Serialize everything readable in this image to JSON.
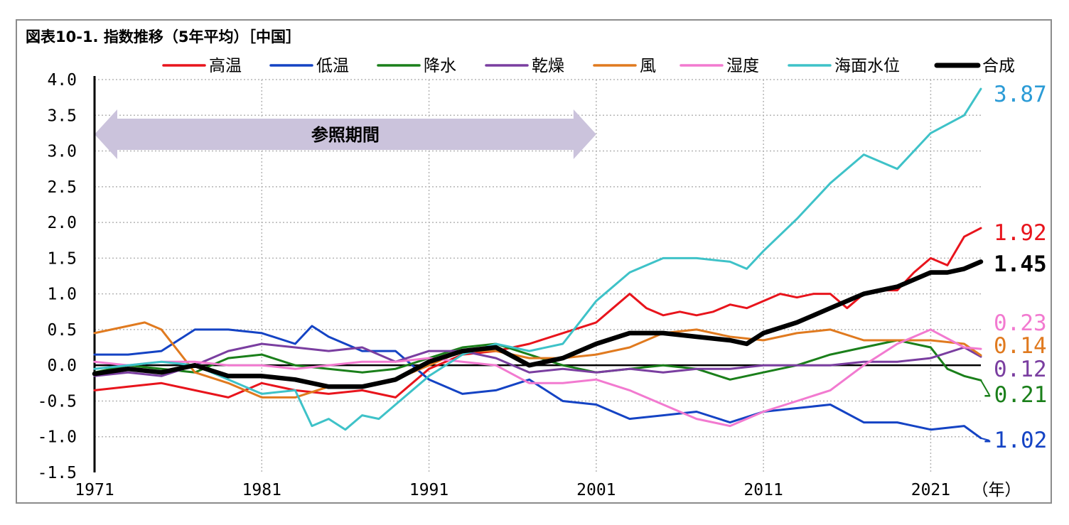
{
  "title": "図表10-1. 指数推移（5年平均）［中国］",
  "colors": {
    "高温": "#e8141c",
    "低温": "#1443c4",
    "降水": "#1a7f1a",
    "乾燥": "#7a3ea0",
    "風": "#e07a1f",
    "湿度": "#f27ad0",
    "海面水位": "#3ec2c8",
    "合成": "#000000"
  },
  "chart_data": {
    "type": "line",
    "title": "図表10-1. 指数推移（5年平均）［中国］",
    "xlabel": "（年）",
    "ylabel": "",
    "xlim": [
      1971,
      2024
    ],
    "ylim": [
      -1.5,
      4.0
    ],
    "x_ticks": [
      "1971",
      "1981",
      "1991",
      "2001",
      "2011",
      "2021"
    ],
    "y_ticks": [
      "4.0",
      "3.5",
      "3.0",
      "2.5",
      "2.0",
      "1.5",
      "1.0",
      "0.5",
      "0.0",
      "-0.5",
      "-1.0",
      "-1.5"
    ],
    "grid": "dotted",
    "legend_position": "top",
    "reference_period": {
      "label": "参照期間",
      "start": 1971,
      "end": 2001
    },
    "series": [
      {
        "name": "高温",
        "end_label": "1.92",
        "x": [
          1971,
          1973,
          1975,
          1977,
          1979,
          1981,
          1983,
          1985,
          1987,
          1989,
          1991,
          1993,
          1995,
          1997,
          1999,
          2001,
          2002,
          2003,
          2004,
          2005,
          2006,
          2007,
          2008,
          2009,
          2010,
          2011,
          2012,
          2013,
          2014,
          2015,
          2016,
          2017,
          2018,
          2019,
          2020,
          2021,
          2022,
          2023,
          2024
        ],
        "y": [
          -0.35,
          -0.3,
          -0.25,
          -0.35,
          -0.45,
          -0.25,
          -0.35,
          -0.4,
          -0.35,
          -0.45,
          -0.05,
          0.15,
          0.2,
          0.3,
          0.45,
          0.6,
          0.8,
          1.0,
          0.8,
          0.7,
          0.75,
          0.7,
          0.75,
          0.85,
          0.8,
          0.9,
          1.0,
          0.95,
          1.0,
          1.0,
          0.8,
          1.0,
          1.05,
          1.05,
          1.3,
          1.5,
          1.4,
          1.8,
          1.92
        ]
      },
      {
        "name": "低温",
        "end_label": "-1.02",
        "x": [
          1971,
          1973,
          1975,
          1977,
          1979,
          1981,
          1983,
          1984,
          1985,
          1987,
          1989,
          1991,
          1993,
          1995,
          1997,
          1999,
          2001,
          2003,
          2005,
          2007,
          2009,
          2011,
          2013,
          2015,
          2017,
          2019,
          2021,
          2023,
          2024
        ],
        "y": [
          0.15,
          0.15,
          0.2,
          0.5,
          0.5,
          0.45,
          0.3,
          0.55,
          0.4,
          0.2,
          0.2,
          -0.2,
          -0.4,
          -0.35,
          -0.2,
          -0.5,
          -0.55,
          -0.75,
          -0.7,
          -0.65,
          -0.8,
          -0.65,
          -0.6,
          -0.55,
          -0.8,
          -0.8,
          -0.9,
          -0.85,
          -1.02
        ]
      },
      {
        "name": "降水",
        "end_label": "-0.21",
        "x": [
          1971,
          1973,
          1975,
          1977,
          1979,
          1981,
          1983,
          1985,
          1987,
          1989,
          1991,
          1993,
          1995,
          1997,
          1999,
          2001,
          2003,
          2005,
          2007,
          2009,
          2011,
          2013,
          2015,
          2017,
          2019,
          2021,
          2022,
          2023,
          2024
        ],
        "y": [
          -0.1,
          0.0,
          -0.05,
          -0.1,
          0.1,
          0.15,
          0.0,
          -0.05,
          -0.1,
          -0.05,
          0.1,
          0.25,
          0.3,
          0.15,
          0.0,
          -0.1,
          -0.05,
          0.0,
          -0.05,
          -0.2,
          -0.1,
          0.0,
          0.15,
          0.25,
          0.35,
          0.25,
          -0.05,
          -0.15,
          -0.21
        ]
      },
      {
        "name": "乾燥",
        "end_label": "0.12",
        "x": [
          1971,
          1973,
          1975,
          1977,
          1979,
          1981,
          1983,
          1985,
          1987,
          1989,
          1991,
          1993,
          1995,
          1997,
          1999,
          2001,
          2003,
          2005,
          2007,
          2009,
          2011,
          2013,
          2015,
          2017,
          2019,
          2021,
          2023,
          2024
        ],
        "y": [
          -0.15,
          -0.1,
          -0.15,
          0.0,
          0.2,
          0.3,
          0.25,
          0.2,
          0.25,
          0.05,
          0.2,
          0.2,
          0.1,
          -0.1,
          -0.05,
          -0.1,
          -0.05,
          -0.1,
          -0.05,
          -0.05,
          0.0,
          0.0,
          0.0,
          0.05,
          0.05,
          0.1,
          0.25,
          0.12
        ]
      },
      {
        "name": "風",
        "end_label": "0.14",
        "x": [
          1971,
          1973,
          1974,
          1975,
          1977,
          1979,
          1981,
          1983,
          1985,
          1987,
          1989,
          1991,
          1993,
          1995,
          1997,
          1999,
          2001,
          2003,
          2005,
          2007,
          2009,
          2011,
          2013,
          2015,
          2017,
          2019,
          2021,
          2023,
          2024
        ],
        "y": [
          0.45,
          0.55,
          0.6,
          0.5,
          -0.1,
          -0.25,
          -0.45,
          -0.45,
          -0.3,
          -0.3,
          -0.2,
          0.0,
          0.2,
          0.2,
          0.1,
          0.1,
          0.15,
          0.25,
          0.45,
          0.5,
          0.4,
          0.35,
          0.45,
          0.5,
          0.35,
          0.35,
          0.35,
          0.3,
          0.14
        ]
      },
      {
        "name": "湿度",
        "end_label": "0.23",
        "x": [
          1971,
          1973,
          1975,
          1977,
          1979,
          1981,
          1983,
          1985,
          1987,
          1989,
          1991,
          1993,
          1995,
          1997,
          1999,
          2001,
          2003,
          2005,
          2007,
          2009,
          2011,
          2013,
          2015,
          2017,
          2019,
          2021,
          2023,
          2024
        ],
        "y": [
          0.05,
          0.0,
          0.05,
          0.05,
          0.0,
          0.0,
          -0.05,
          0.0,
          0.05,
          0.05,
          0.1,
          0.05,
          0.0,
          -0.25,
          -0.25,
          -0.2,
          -0.35,
          -0.55,
          -0.75,
          -0.85,
          -0.65,
          -0.5,
          -0.35,
          0.0,
          0.3,
          0.5,
          0.25,
          0.23
        ]
      },
      {
        "name": "海面水位",
        "end_label": "3.87",
        "x": [
          1971,
          1973,
          1975,
          1977,
          1979,
          1981,
          1983,
          1984,
          1985,
          1986,
          1987,
          1988,
          1989,
          1991,
          1993,
          1995,
          1997,
          1999,
          2001,
          2003,
          2005,
          2007,
          2009,
          2010,
          2011,
          2013,
          2015,
          2017,
          2019,
          2021,
          2023,
          2024
        ],
        "y": [
          -0.05,
          0.0,
          0.05,
          0.0,
          -0.2,
          -0.4,
          -0.35,
          -0.85,
          -0.75,
          -0.9,
          -0.7,
          -0.75,
          -0.55,
          -0.15,
          0.15,
          0.3,
          0.2,
          0.3,
          0.9,
          1.3,
          1.5,
          1.5,
          1.45,
          1.35,
          1.6,
          2.05,
          2.55,
          2.95,
          2.75,
          3.25,
          3.5,
          3.87
        ]
      },
      {
        "name": "合成",
        "end_label": "1.45",
        "x": [
          1971,
          1973,
          1975,
          1977,
          1979,
          1981,
          1983,
          1985,
          1987,
          1989,
          1991,
          1993,
          1995,
          1997,
          1999,
          2001,
          2003,
          2005,
          2007,
          2009,
          2010,
          2011,
          2013,
          2015,
          2017,
          2019,
          2021,
          2022,
          2023,
          2024
        ],
        "y": [
          -0.12,
          -0.05,
          -0.1,
          0.0,
          -0.15,
          -0.15,
          -0.2,
          -0.3,
          -0.3,
          -0.2,
          0.05,
          0.2,
          0.25,
          0.0,
          0.1,
          0.3,
          0.45,
          0.45,
          0.4,
          0.35,
          0.3,
          0.45,
          0.6,
          0.8,
          1.0,
          1.1,
          1.3,
          1.3,
          1.35,
          1.45
        ]
      }
    ]
  }
}
